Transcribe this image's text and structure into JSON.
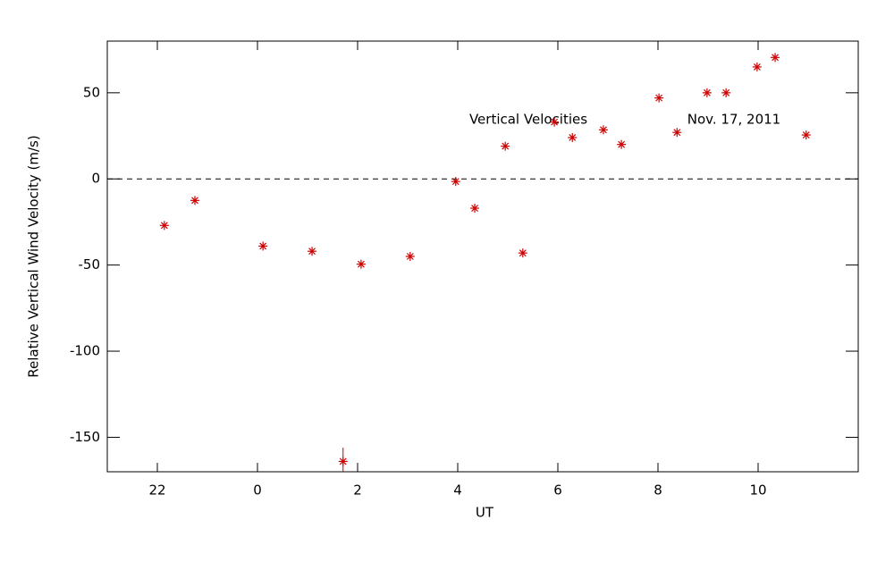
{
  "chart_data": {
    "type": "scatter",
    "x_label": "UT",
    "y_label": "Relative Vertical Wind Velocity (m/s)",
    "annotations": [
      "Vertical Velocities",
      "Nov. 17, 2011"
    ],
    "xlim": [
      21,
      36
    ],
    "xticks": [
      22,
      {
        "value": 24,
        "label": "0"
      },
      {
        "value": 26,
        "label": "2"
      },
      {
        "value": 28,
        "label": "4"
      },
      {
        "value": 30,
        "label": "6"
      },
      {
        "value": 32,
        "label": "8"
      },
      {
        "value": 34,
        "label": "10"
      }
    ],
    "ylim": [
      -170,
      80
    ],
    "yticks": [
      -150,
      -100,
      -50,
      0,
      50
    ],
    "zero_line": true,
    "series": [
      {
        "color": "#cc0000",
        "x": [
          22.14,
          22.75,
          24.11,
          25.09,
          26.07,
          27.05,
          27.96,
          28.34,
          28.95,
          29.3,
          29.93,
          30.29,
          30.91,
          31.27,
          32.02,
          32.38,
          32.98,
          33.36,
          33.98,
          34.34,
          34.96,
          25.71
        ],
        "values": [
          -27,
          -12.5,
          -39,
          -42,
          -49.5,
          -45,
          -1.5,
          -17,
          19,
          -43,
          33,
          24,
          28.5,
          20,
          47,
          27,
          50,
          50,
          65,
          70.5,
          25.5,
          -164
        ],
        "errors": [
          null,
          null,
          null,
          null,
          null,
          null,
          null,
          null,
          null,
          null,
          null,
          null,
          null,
          null,
          null,
          null,
          null,
          null,
          null,
          null,
          null,
          8
        ]
      }
    ]
  }
}
